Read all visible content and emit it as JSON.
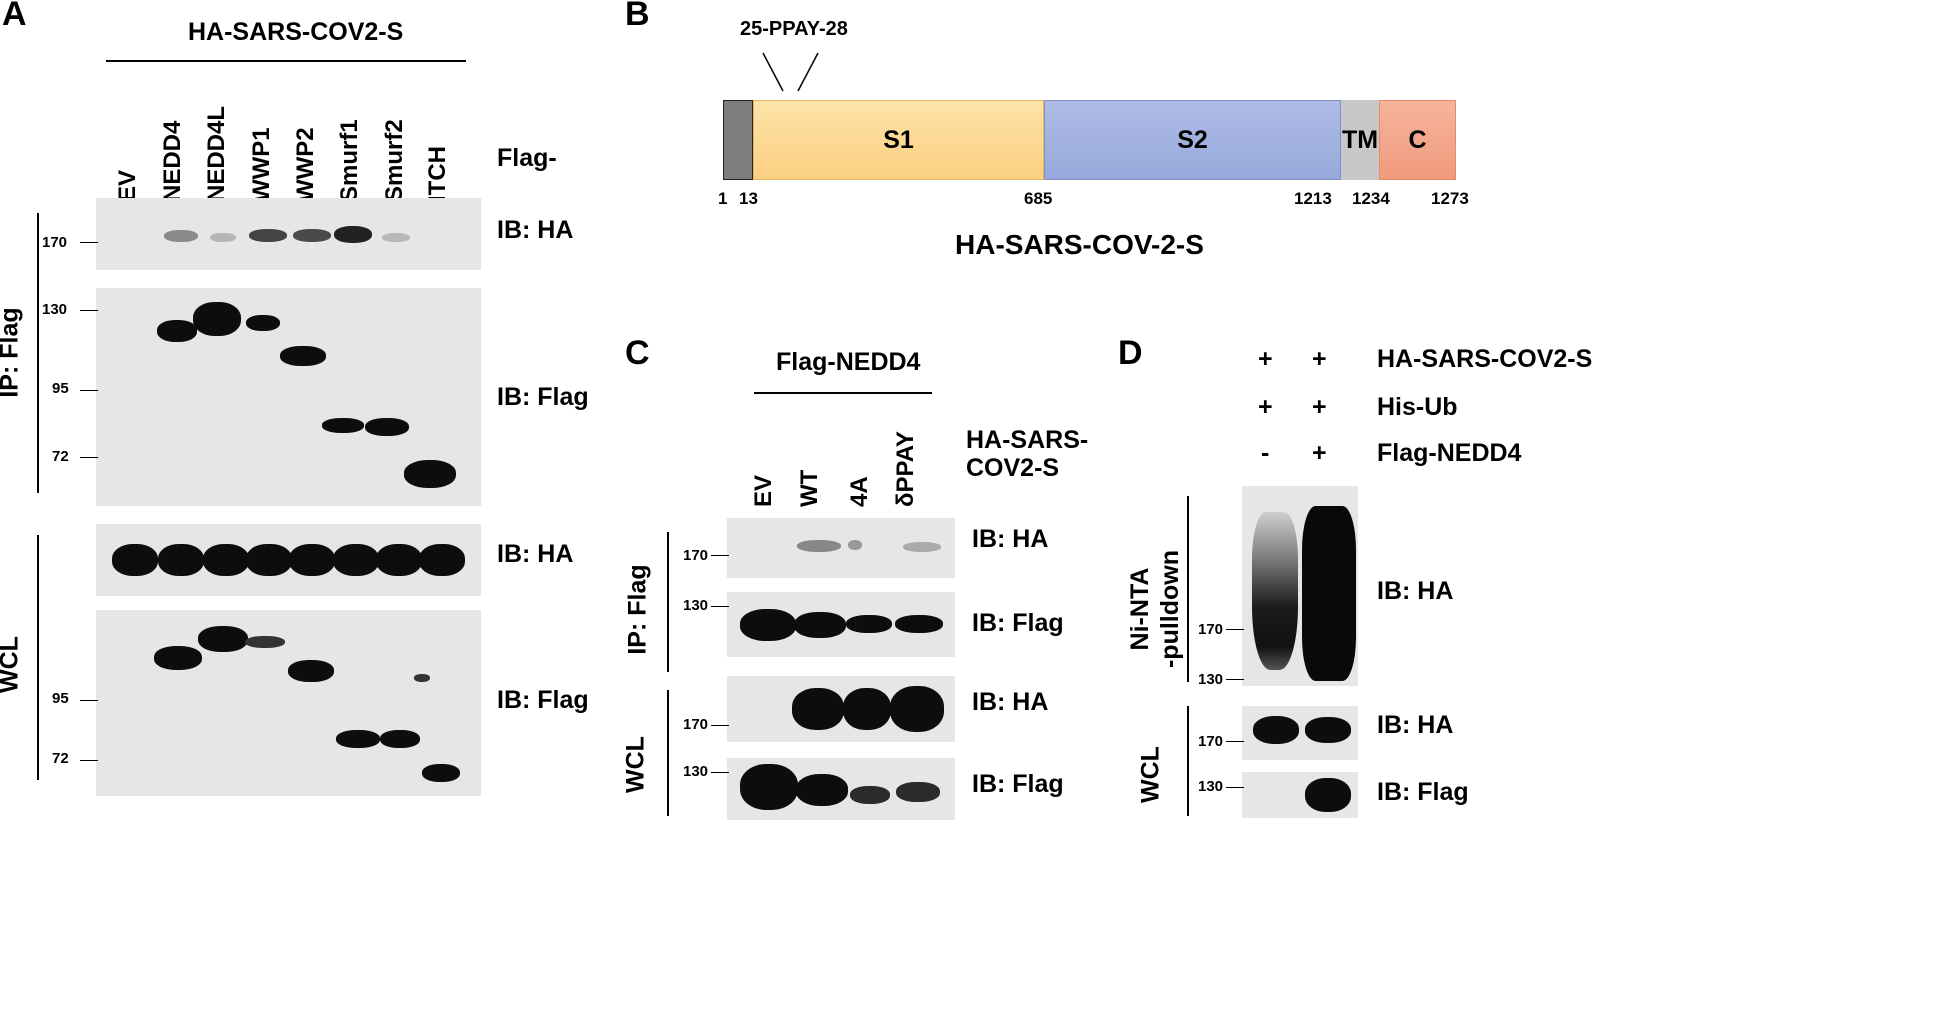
{
  "panels": {
    "a": "A",
    "b": "B",
    "c": "C",
    "d": "D"
  },
  "A": {
    "construct": "HA-SARS-COV2-S",
    "lanes": [
      "EV",
      "NEDD4",
      "NEDD4L",
      "WWP1",
      "WWP2",
      "Smurf1",
      "Smurf2",
      "ITCH"
    ],
    "prefix": "Flag-",
    "ip_label": "IP: Flag",
    "wcl_label": "WCL",
    "ib": {
      "ha1": "IB: HA",
      "flag1": "IB: Flag",
      "ha2": "IB: HA",
      "flag2": "IB: Flag"
    },
    "mw": {
      "m170": "170",
      "m130": "130",
      "m95": "95",
      "m72": "72",
      "m95b": "95",
      "m72b": "72"
    }
  },
  "B": {
    "motif": "25-PPAY-28",
    "domains": {
      "s1": "S1",
      "s2": "S2",
      "tm": "TM",
      "c": "C"
    },
    "positions": [
      "1",
      "13",
      "685",
      "1213",
      "1234",
      "1273"
    ],
    "title": "HA-SARS-COV-2-S",
    "colors": {
      "signal": "#7d7d7d",
      "s1": "#fdd78a",
      "s2": "#a2b2e0",
      "tm": "#c8c8c8",
      "c": "#f3a68c"
    }
  },
  "C": {
    "construct": "Flag-NEDD4",
    "lanes": [
      "EV",
      "WT",
      "4A",
      "δPPAY"
    ],
    "side_label_1": "HA-SARS-",
    "side_label_2": "COV2-S",
    "ip_label": "IP: Flag",
    "wcl_label": "WCL",
    "ib": {
      "ha1": "IB: HA",
      "flag1": "IB: Flag",
      "ha2": "IB: HA",
      "flag2": "IB: Flag"
    },
    "mw": {
      "m170": "170",
      "m130": "130",
      "m170b": "170",
      "m130b": "130"
    }
  },
  "D": {
    "rows": [
      {
        "label": "HA-SARS-COV2-S",
        "lane1": "+",
        "lane2": "+"
      },
      {
        "label": "His-Ub",
        "lane1": "+",
        "lane2": "+"
      },
      {
        "label": "Flag-NEDD4",
        "lane1": "-",
        "lane2": "+"
      }
    ],
    "pulldown_label_1": "Ni-NTA",
    "pulldown_label_2": "-pulldown",
    "wcl_label": "WCL",
    "ib": {
      "ha1": "IB: HA",
      "ha2": "IB: HA",
      "flag": "IB: Flag"
    },
    "mw": {
      "m170": "170",
      "m130": "130",
      "m170b": "170",
      "m130b": "130"
    }
  }
}
